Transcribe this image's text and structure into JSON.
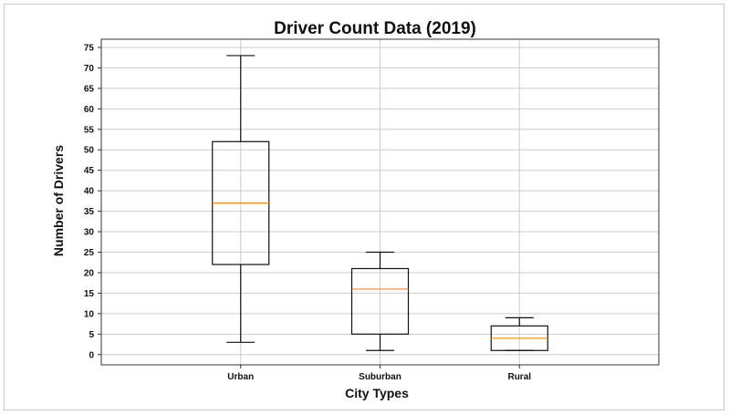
{
  "chart_data": {
    "type": "boxplot",
    "title": "Driver Count Data (2019)",
    "xlabel": "City Types",
    "ylabel": "Number of Drivers",
    "ylim": [
      -2.5,
      77
    ],
    "yticks": [
      0,
      5,
      10,
      15,
      20,
      25,
      30,
      35,
      40,
      45,
      50,
      55,
      60,
      65,
      70,
      75
    ],
    "grid": true,
    "categories": [
      "Urban",
      "Suburban",
      "Rural"
    ],
    "boxes": [
      {
        "name": "Urban",
        "whisker_low": 3,
        "q1": 22,
        "median": 37,
        "q3": 52,
        "whisker_high": 73
      },
      {
        "name": "Suburban",
        "whisker_low": 1,
        "q1": 5,
        "median": 16,
        "q3": 21,
        "whisker_high": 25
      },
      {
        "name": "Rural",
        "whisker_low": 1,
        "q1": 1,
        "median": 4,
        "q3": 7,
        "whisker_high": 9
      }
    ],
    "colors": {
      "box": "#111111",
      "median": "#ff8c1a",
      "grid": "#cccccc",
      "axes": "#333333"
    }
  }
}
